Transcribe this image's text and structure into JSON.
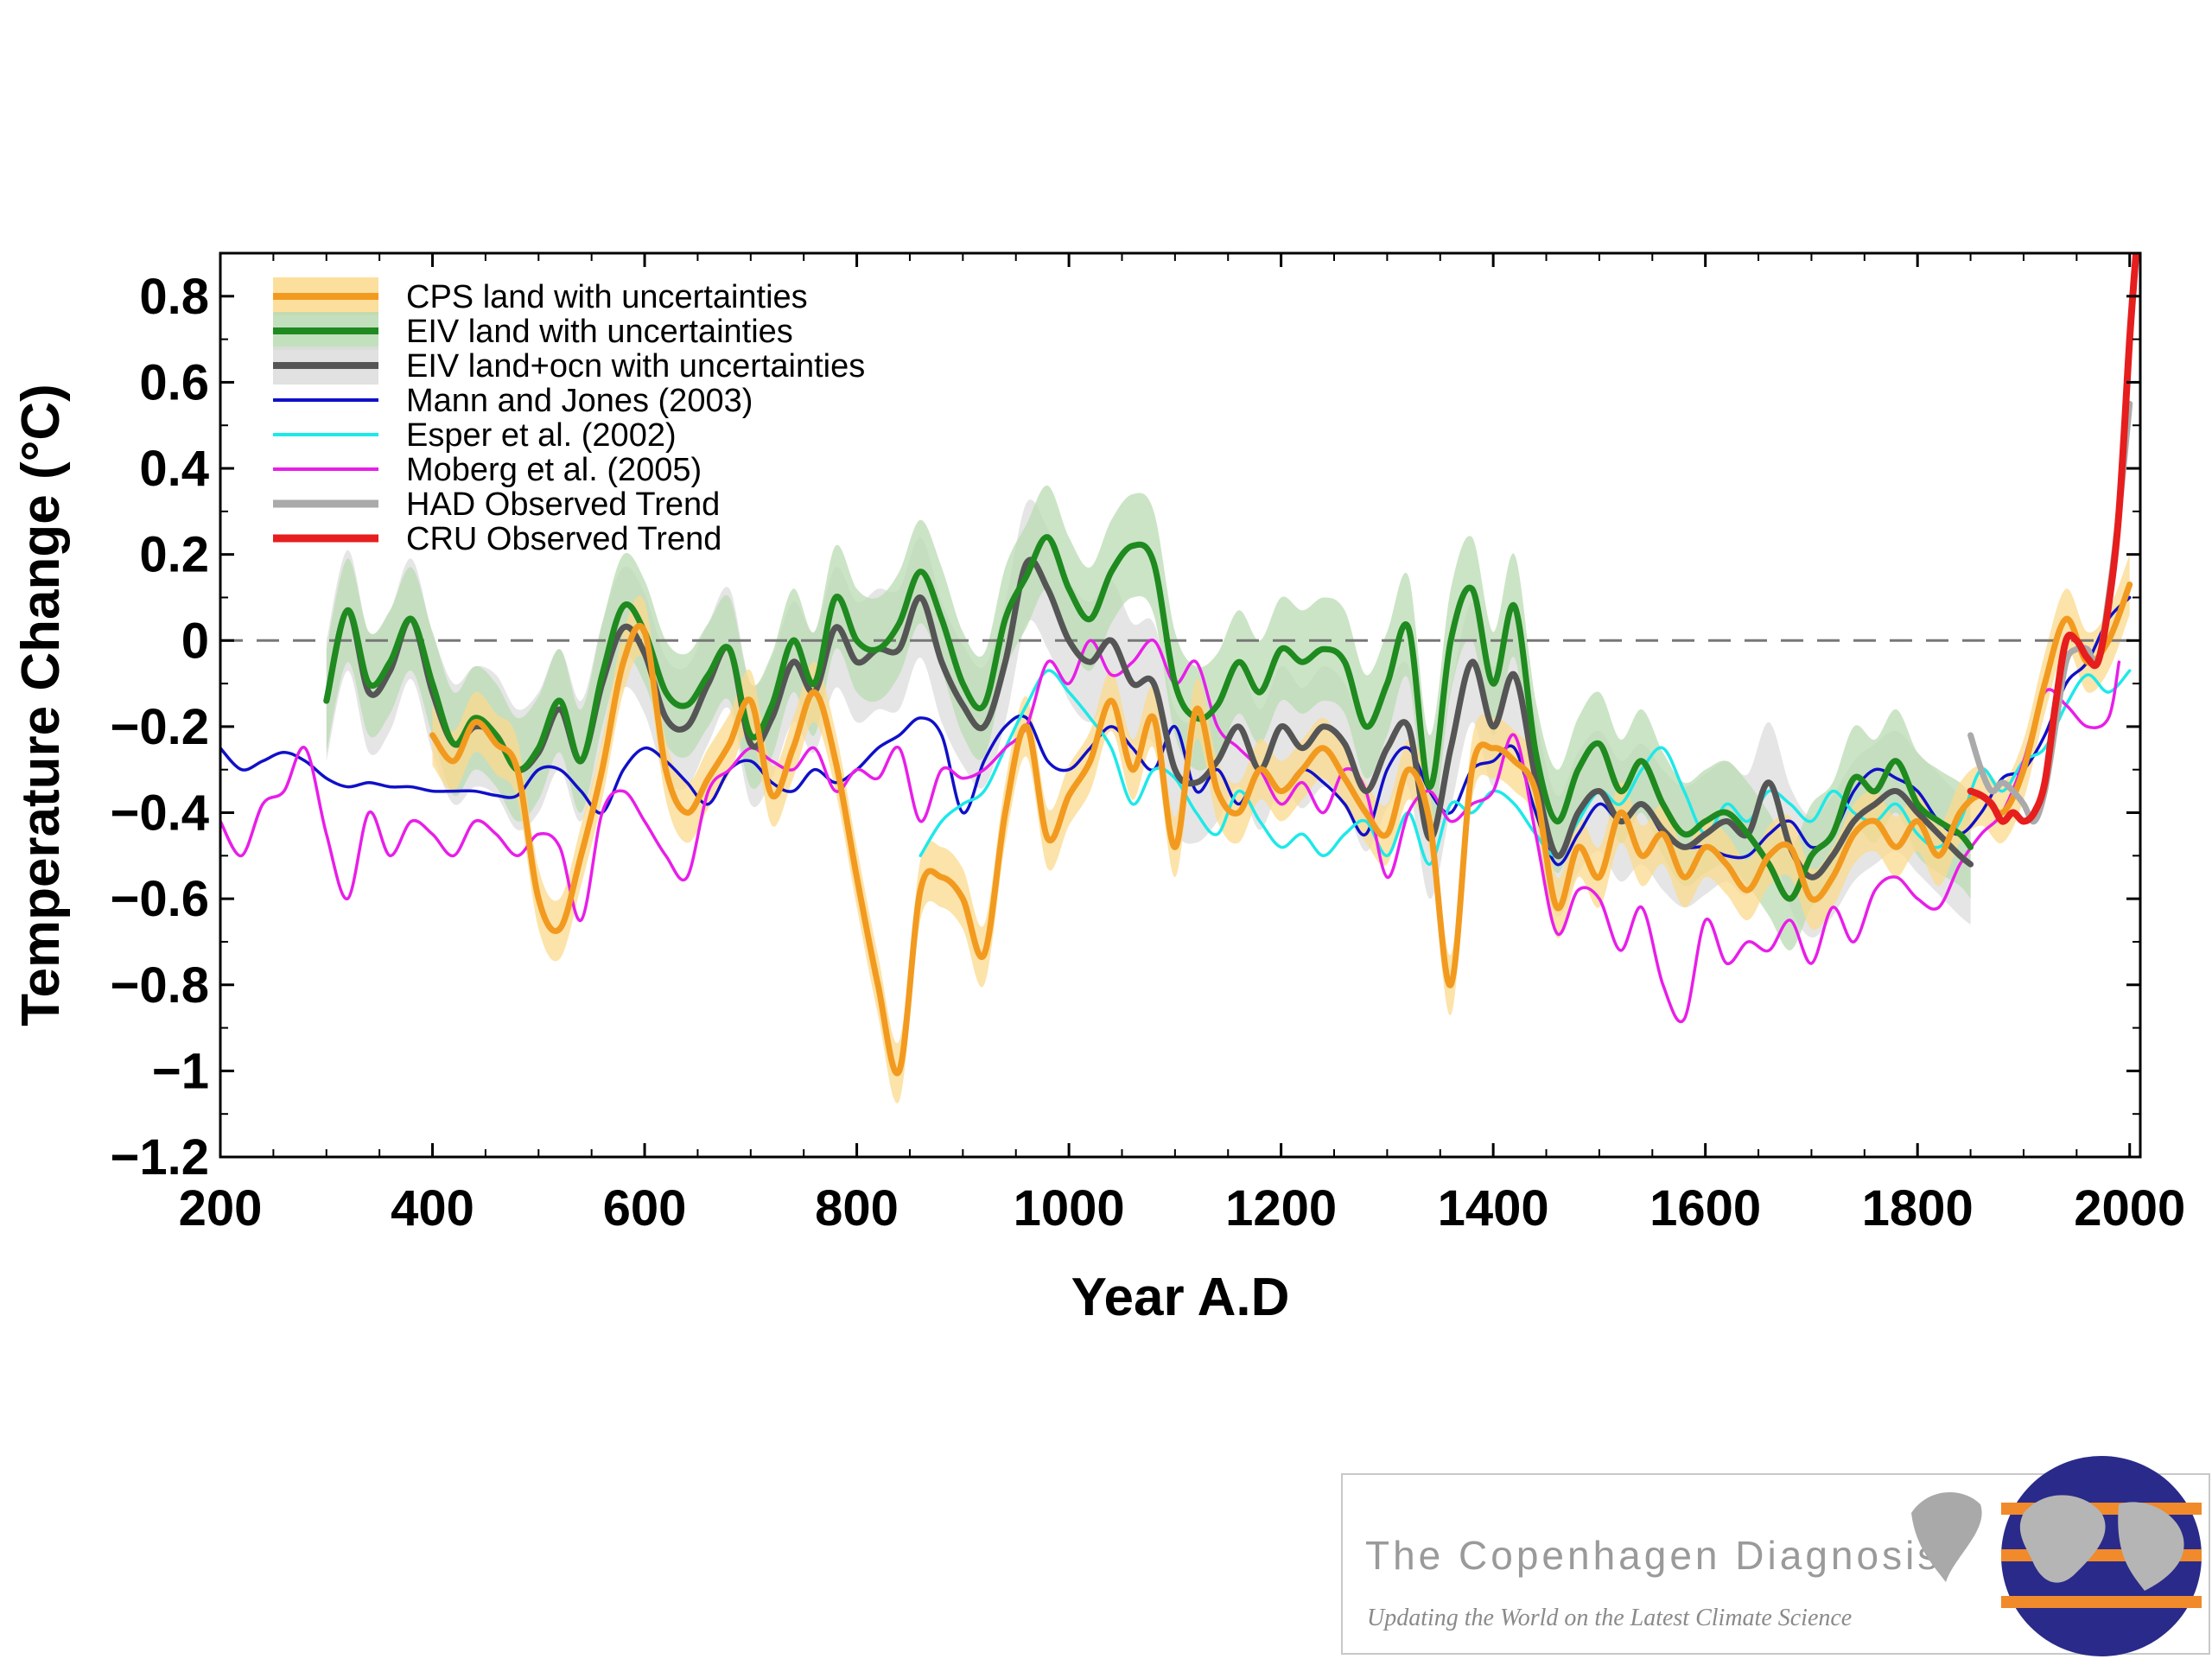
{
  "chart_data": {
    "type": "line",
    "title": "",
    "xlabel": "Year A.D",
    "ylabel": "Temperature Change   (°C)",
    "xlim": [
      200,
      2010
    ],
    "ylim": [
      -1.2,
      0.9
    ],
    "x_ticks": [
      200,
      400,
      600,
      800,
      1000,
      1200,
      1400,
      1600,
      1800,
      2000
    ],
    "y_ticks": [
      -1.2,
      -1,
      -0.8,
      -0.6,
      -0.4,
      -0.2,
      0,
      0.2,
      0.4,
      0.6,
      0.8
    ],
    "x_tick_labels": [
      "200",
      "400",
      "600",
      "800",
      "1000",
      "1200",
      "1400",
      "1600",
      "1800",
      "2000"
    ],
    "y_tick_labels": [
      "−1.2",
      "−1",
      "−0.8",
      "−0.6",
      "−0.4",
      "−0.2",
      "0",
      "0.2",
      "0.4",
      "0.6",
      "0.8"
    ],
    "zero_line": "dashed",
    "legend_position": "top-left",
    "legend": [
      "CPS land with uncertainties",
      "EIV land with uncertainties",
      "EIV land+ocn with uncertainties",
      "Mann and Jones (2003)",
      "Esper et al. (2002)",
      "Moberg et al. (2005)",
      "HAD Observed Trend",
      "CRU Observed Trend"
    ],
    "series": [
      {
        "name": "CPS land with uncertainties",
        "color": "#f29a1f",
        "band_color": "#fbd98c",
        "band_width": 0.07,
        "x": [
          400,
          420,
          440,
          460,
          480,
          500,
          520,
          540,
          560,
          580,
          600,
          620,
          640,
          660,
          680,
          700,
          720,
          740,
          760,
          780,
          800,
          820,
          840,
          860,
          880,
          900,
          920,
          940,
          960,
          980,
          1000,
          1020,
          1040,
          1060,
          1080,
          1100,
          1120,
          1140,
          1160,
          1180,
          1200,
          1220,
          1240,
          1260,
          1280,
          1300,
          1320,
          1340,
          1360,
          1380,
          1400,
          1420,
          1440,
          1460,
          1480,
          1500,
          1520,
          1540,
          1560,
          1580,
          1600,
          1620,
          1640,
          1660,
          1680,
          1700,
          1720,
          1740,
          1760,
          1780,
          1800,
          1820,
          1840,
          1860,
          1880,
          1900,
          1920,
          1940,
          1960,
          1980,
          2000
        ],
        "y": [
          -0.22,
          -0.28,
          -0.19,
          -0.24,
          -0.3,
          -0.6,
          -0.67,
          -0.5,
          -0.3,
          -0.05,
          0.02,
          -0.3,
          -0.4,
          -0.32,
          -0.24,
          -0.14,
          -0.36,
          -0.25,
          -0.12,
          -0.28,
          -0.55,
          -0.8,
          -1.0,
          -0.58,
          -0.55,
          -0.6,
          -0.73,
          -0.4,
          -0.2,
          -0.46,
          -0.36,
          -0.28,
          -0.14,
          -0.3,
          -0.18,
          -0.48,
          -0.16,
          -0.35,
          -0.4,
          -0.3,
          -0.35,
          -0.3,
          -0.25,
          -0.32,
          -0.4,
          -0.45,
          -0.3,
          -0.42,
          -0.8,
          -0.3,
          -0.25,
          -0.28,
          -0.35,
          -0.62,
          -0.48,
          -0.55,
          -0.4,
          -0.5,
          -0.45,
          -0.55,
          -0.48,
          -0.52,
          -0.58,
          -0.5,
          -0.48,
          -0.6,
          -0.55,
          -0.45,
          -0.42,
          -0.48,
          -0.42,
          -0.5,
          -0.4,
          -0.36,
          -0.4,
          -0.3,
          -0.1,
          0.05,
          -0.05,
          0.0,
          0.13
        ]
      },
      {
        "name": "EIV land with uncertainties",
        "color": "#1f8a1f",
        "band_color": "#b9dbb3",
        "band_width": 0.12,
        "x": [
          300,
          320,
          340,
          360,
          380,
          400,
          420,
          440,
          460,
          480,
          500,
          520,
          540,
          560,
          580,
          600,
          620,
          640,
          660,
          680,
          700,
          720,
          740,
          760,
          780,
          800,
          820,
          840,
          860,
          880,
          900,
          920,
          940,
          960,
          980,
          1000,
          1020,
          1040,
          1060,
          1080,
          1100,
          1120,
          1140,
          1160,
          1180,
          1200,
          1220,
          1240,
          1260,
          1280,
          1300,
          1320,
          1340,
          1360,
          1380,
          1400,
          1420,
          1440,
          1460,
          1480,
          1500,
          1520,
          1540,
          1560,
          1580,
          1600,
          1620,
          1640,
          1660,
          1680,
          1700,
          1720,
          1740,
          1760,
          1780,
          1800,
          1820,
          1840,
          1850
        ],
        "y": [
          -0.14,
          0.07,
          -0.1,
          -0.05,
          0.05,
          -0.1,
          -0.24,
          -0.18,
          -0.22,
          -0.3,
          -0.25,
          -0.14,
          -0.28,
          -0.08,
          0.08,
          0.02,
          -0.12,
          -0.15,
          -0.08,
          -0.02,
          -0.22,
          -0.15,
          0.0,
          -0.1,
          0.1,
          0.0,
          -0.02,
          0.04,
          0.16,
          0.05,
          -0.1,
          -0.15,
          0.05,
          0.15,
          0.24,
          0.12,
          0.05,
          0.16,
          0.22,
          0.18,
          -0.1,
          -0.18,
          -0.15,
          -0.05,
          -0.12,
          -0.02,
          -0.05,
          -0.02,
          -0.05,
          -0.2,
          -0.1,
          0.03,
          -0.34,
          0.0,
          0.12,
          -0.1,
          0.08,
          -0.26,
          -0.42,
          -0.3,
          -0.24,
          -0.35,
          -0.28,
          -0.38,
          -0.45,
          -0.42,
          -0.4,
          -0.45,
          -0.52,
          -0.6,
          -0.5,
          -0.45,
          -0.32,
          -0.35,
          -0.28,
          -0.38,
          -0.42,
          -0.45,
          -0.48
        ]
      },
      {
        "name": "EIV land+ocn with uncertainties",
        "color": "#555555",
        "band_color": "#dcdcdc",
        "band_width": 0.14,
        "x": [
          300,
          320,
          340,
          360,
          380,
          400,
          420,
          440,
          460,
          480,
          500,
          520,
          540,
          560,
          580,
          600,
          620,
          640,
          660,
          680,
          700,
          720,
          740,
          760,
          780,
          800,
          820,
          840,
          860,
          880,
          900,
          920,
          940,
          960,
          980,
          1000,
          1020,
          1040,
          1060,
          1080,
          1100,
          1120,
          1140,
          1160,
          1180,
          1200,
          1220,
          1240,
          1260,
          1280,
          1300,
          1320,
          1340,
          1360,
          1380,
          1400,
          1420,
          1440,
          1460,
          1480,
          1500,
          1520,
          1540,
          1560,
          1580,
          1600,
          1620,
          1640,
          1660,
          1680,
          1700,
          1720,
          1740,
          1760,
          1780,
          1800,
          1820,
          1840,
          1850
        ],
        "y": [
          -0.14,
          0.07,
          -0.12,
          -0.07,
          0.05,
          -0.12,
          -0.24,
          -0.2,
          -0.22,
          -0.3,
          -0.26,
          -0.16,
          -0.28,
          -0.1,
          0.03,
          -0.03,
          -0.18,
          -0.2,
          -0.1,
          -0.02,
          -0.24,
          -0.18,
          -0.05,
          -0.12,
          0.03,
          -0.05,
          -0.02,
          -0.02,
          0.1,
          -0.05,
          -0.15,
          -0.2,
          -0.05,
          0.18,
          0.12,
          0.0,
          -0.05,
          0.0,
          -0.1,
          -0.1,
          -0.3,
          -0.33,
          -0.28,
          -0.2,
          -0.3,
          -0.2,
          -0.25,
          -0.2,
          -0.24,
          -0.35,
          -0.25,
          -0.2,
          -0.46,
          -0.25,
          -0.05,
          -0.2,
          -0.08,
          -0.32,
          -0.5,
          -0.4,
          -0.35,
          -0.42,
          -0.38,
          -0.44,
          -0.48,
          -0.45,
          -0.42,
          -0.45,
          -0.33,
          -0.48,
          -0.55,
          -0.5,
          -0.42,
          -0.38,
          -0.35,
          -0.4,
          -0.45,
          -0.5,
          -0.52
        ]
      },
      {
        "name": "Mann and Jones (2003)",
        "color": "#1010c8",
        "x": [
          200,
          220,
          240,
          260,
          280,
          300,
          320,
          340,
          360,
          380,
          400,
          420,
          440,
          460,
          480,
          500,
          520,
          540,
          560,
          580,
          600,
          620,
          640,
          660,
          680,
          700,
          720,
          740,
          760,
          780,
          800,
          820,
          840,
          860,
          880,
          900,
          920,
          940,
          960,
          980,
          1000,
          1020,
          1040,
          1060,
          1080,
          1100,
          1120,
          1140,
          1160,
          1180,
          1200,
          1220,
          1240,
          1260,
          1280,
          1300,
          1320,
          1340,
          1360,
          1380,
          1400,
          1420,
          1440,
          1460,
          1480,
          1500,
          1520,
          1540,
          1560,
          1580,
          1600,
          1620,
          1640,
          1660,
          1680,
          1700,
          1720,
          1740,
          1760,
          1780,
          1800,
          1820,
          1840,
          1860,
          1880,
          1900,
          1920,
          1940,
          1960,
          1980,
          2000
        ],
        "y": [
          -0.25,
          -0.3,
          -0.28,
          -0.26,
          -0.28,
          -0.32,
          -0.34,
          -0.33,
          -0.34,
          -0.34,
          -0.35,
          -0.35,
          -0.35,
          -0.36,
          -0.36,
          -0.3,
          -0.3,
          -0.35,
          -0.4,
          -0.3,
          -0.25,
          -0.28,
          -0.33,
          -0.38,
          -0.3,
          -0.28,
          -0.33,
          -0.35,
          -0.3,
          -0.33,
          -0.3,
          -0.25,
          -0.22,
          -0.18,
          -0.22,
          -0.4,
          -0.28,
          -0.2,
          -0.18,
          -0.28,
          -0.3,
          -0.25,
          -0.2,
          -0.25,
          -0.3,
          -0.2,
          -0.35,
          -0.3,
          -0.38,
          -0.3,
          -0.35,
          -0.3,
          -0.33,
          -0.38,
          -0.45,
          -0.3,
          -0.25,
          -0.35,
          -0.4,
          -0.3,
          -0.28,
          -0.25,
          -0.4,
          -0.52,
          -0.45,
          -0.38,
          -0.42,
          -0.38,
          -0.45,
          -0.48,
          -0.48,
          -0.5,
          -0.5,
          -0.45,
          -0.42,
          -0.48,
          -0.45,
          -0.35,
          -0.3,
          -0.32,
          -0.35,
          -0.42,
          -0.45,
          -0.4,
          -0.32,
          -0.3,
          -0.22,
          -0.1,
          -0.05,
          0.05,
          0.1
        ]
      },
      {
        "name": "Esper et al. (2002)",
        "color": "#1ee8e8",
        "x": [
          860,
          880,
          900,
          920,
          940,
          960,
          980,
          1000,
          1020,
          1040,
          1060,
          1080,
          1100,
          1120,
          1140,
          1160,
          1180,
          1200,
          1220,
          1240,
          1260,
          1280,
          1300,
          1320,
          1340,
          1360,
          1380,
          1400,
          1420,
          1440,
          1460,
          1480,
          1500,
          1520,
          1540,
          1560,
          1580,
          1600,
          1620,
          1640,
          1660,
          1680,
          1700,
          1720,
          1740,
          1760,
          1780,
          1800,
          1820,
          1840,
          1860,
          1880,
          1900,
          1920,
          1940,
          1960,
          1980,
          2000
        ],
        "y": [
          -0.5,
          -0.42,
          -0.38,
          -0.35,
          -0.25,
          -0.15,
          -0.07,
          -0.12,
          -0.18,
          -0.25,
          -0.38,
          -0.3,
          -0.32,
          -0.4,
          -0.45,
          -0.35,
          -0.42,
          -0.48,
          -0.45,
          -0.5,
          -0.45,
          -0.42,
          -0.5,
          -0.4,
          -0.52,
          -0.38,
          -0.4,
          -0.35,
          -0.38,
          -0.45,
          -0.5,
          -0.42,
          -0.35,
          -0.38,
          -0.3,
          -0.25,
          -0.35,
          -0.45,
          -0.38,
          -0.42,
          -0.35,
          -0.38,
          -0.42,
          -0.35,
          -0.4,
          -0.42,
          -0.38,
          -0.45,
          -0.48,
          -0.42,
          -0.3,
          -0.35,
          -0.28,
          -0.25,
          -0.15,
          -0.08,
          -0.12,
          -0.07
        ]
      },
      {
        "name": "Moberg et al. (2005)",
        "color": "#e81ee8",
        "x": [
          200,
          220,
          240,
          260,
          280,
          300,
          320,
          340,
          360,
          380,
          400,
          420,
          440,
          460,
          480,
          500,
          520,
          540,
          560,
          580,
          600,
          620,
          640,
          660,
          680,
          700,
          720,
          740,
          760,
          780,
          800,
          820,
          840,
          860,
          880,
          900,
          920,
          940,
          960,
          980,
          1000,
          1020,
          1040,
          1060,
          1080,
          1100,
          1120,
          1140,
          1160,
          1180,
          1200,
          1220,
          1240,
          1260,
          1280,
          1300,
          1320,
          1340,
          1360,
          1380,
          1400,
          1420,
          1440,
          1460,
          1480,
          1500,
          1520,
          1540,
          1560,
          1580,
          1600,
          1620,
          1640,
          1660,
          1680,
          1700,
          1720,
          1740,
          1760,
          1780,
          1800,
          1820,
          1840,
          1860,
          1880,
          1900,
          1920,
          1940,
          1960,
          1980,
          1990
        ],
        "y": [
          -0.42,
          -0.5,
          -0.38,
          -0.35,
          -0.25,
          -0.45,
          -0.6,
          -0.4,
          -0.5,
          -0.42,
          -0.45,
          -0.5,
          -0.42,
          -0.45,
          -0.5,
          -0.45,
          -0.48,
          -0.65,
          -0.4,
          -0.35,
          -0.42,
          -0.5,
          -0.55,
          -0.35,
          -0.3,
          -0.25,
          -0.28,
          -0.3,
          -0.25,
          -0.35,
          -0.3,
          -0.32,
          -0.25,
          -0.42,
          -0.3,
          -0.32,
          -0.3,
          -0.25,
          -0.2,
          -0.05,
          -0.1,
          0.0,
          -0.08,
          -0.05,
          0.0,
          -0.1,
          -0.05,
          -0.2,
          -0.25,
          -0.3,
          -0.38,
          -0.33,
          -0.4,
          -0.3,
          -0.35,
          -0.55,
          -0.4,
          -0.35,
          -0.42,
          -0.38,
          -0.35,
          -0.22,
          -0.45,
          -0.68,
          -0.58,
          -0.6,
          -0.72,
          -0.62,
          -0.8,
          -0.88,
          -0.65,
          -0.75,
          -0.7,
          -0.72,
          -0.65,
          -0.75,
          -0.62,
          -0.7,
          -0.58,
          -0.55,
          -0.6,
          -0.62,
          -0.52,
          -0.45,
          -0.4,
          -0.28,
          -0.12,
          -0.15,
          -0.2,
          -0.18,
          -0.05
        ]
      },
      {
        "name": "HAD Observed Trend",
        "color": "#aaaaaa",
        "x": [
          1850,
          1860,
          1870,
          1880,
          1890,
          1900,
          1910,
          1920,
          1930,
          1940,
          1950,
          1960,
          1970,
          1980,
          1990,
          2000
        ],
        "y": [
          -0.22,
          -0.3,
          -0.35,
          -0.33,
          -0.35,
          -0.38,
          -0.42,
          -0.35,
          -0.2,
          -0.05,
          -0.02,
          -0.02,
          -0.05,
          0.1,
          0.3,
          0.55
        ]
      },
      {
        "name": "CRU Observed Trend",
        "color": "#e61e1e",
        "x": [
          1850,
          1860,
          1870,
          1880,
          1890,
          1900,
          1910,
          1920,
          1930,
          1940,
          1950,
          1960,
          1970,
          1980,
          1990,
          2000,
          2006
        ],
        "y": [
          -0.35,
          -0.36,
          -0.38,
          -0.42,
          -0.4,
          -0.42,
          -0.4,
          -0.33,
          -0.15,
          0.0,
          0.0,
          -0.04,
          -0.05,
          0.08,
          0.3,
          0.7,
          0.9
        ]
      }
    ]
  },
  "logo": {
    "title": "The Copenhagen Diagnosis",
    "tagline": "Updating the World on the Latest Climate Science"
  }
}
